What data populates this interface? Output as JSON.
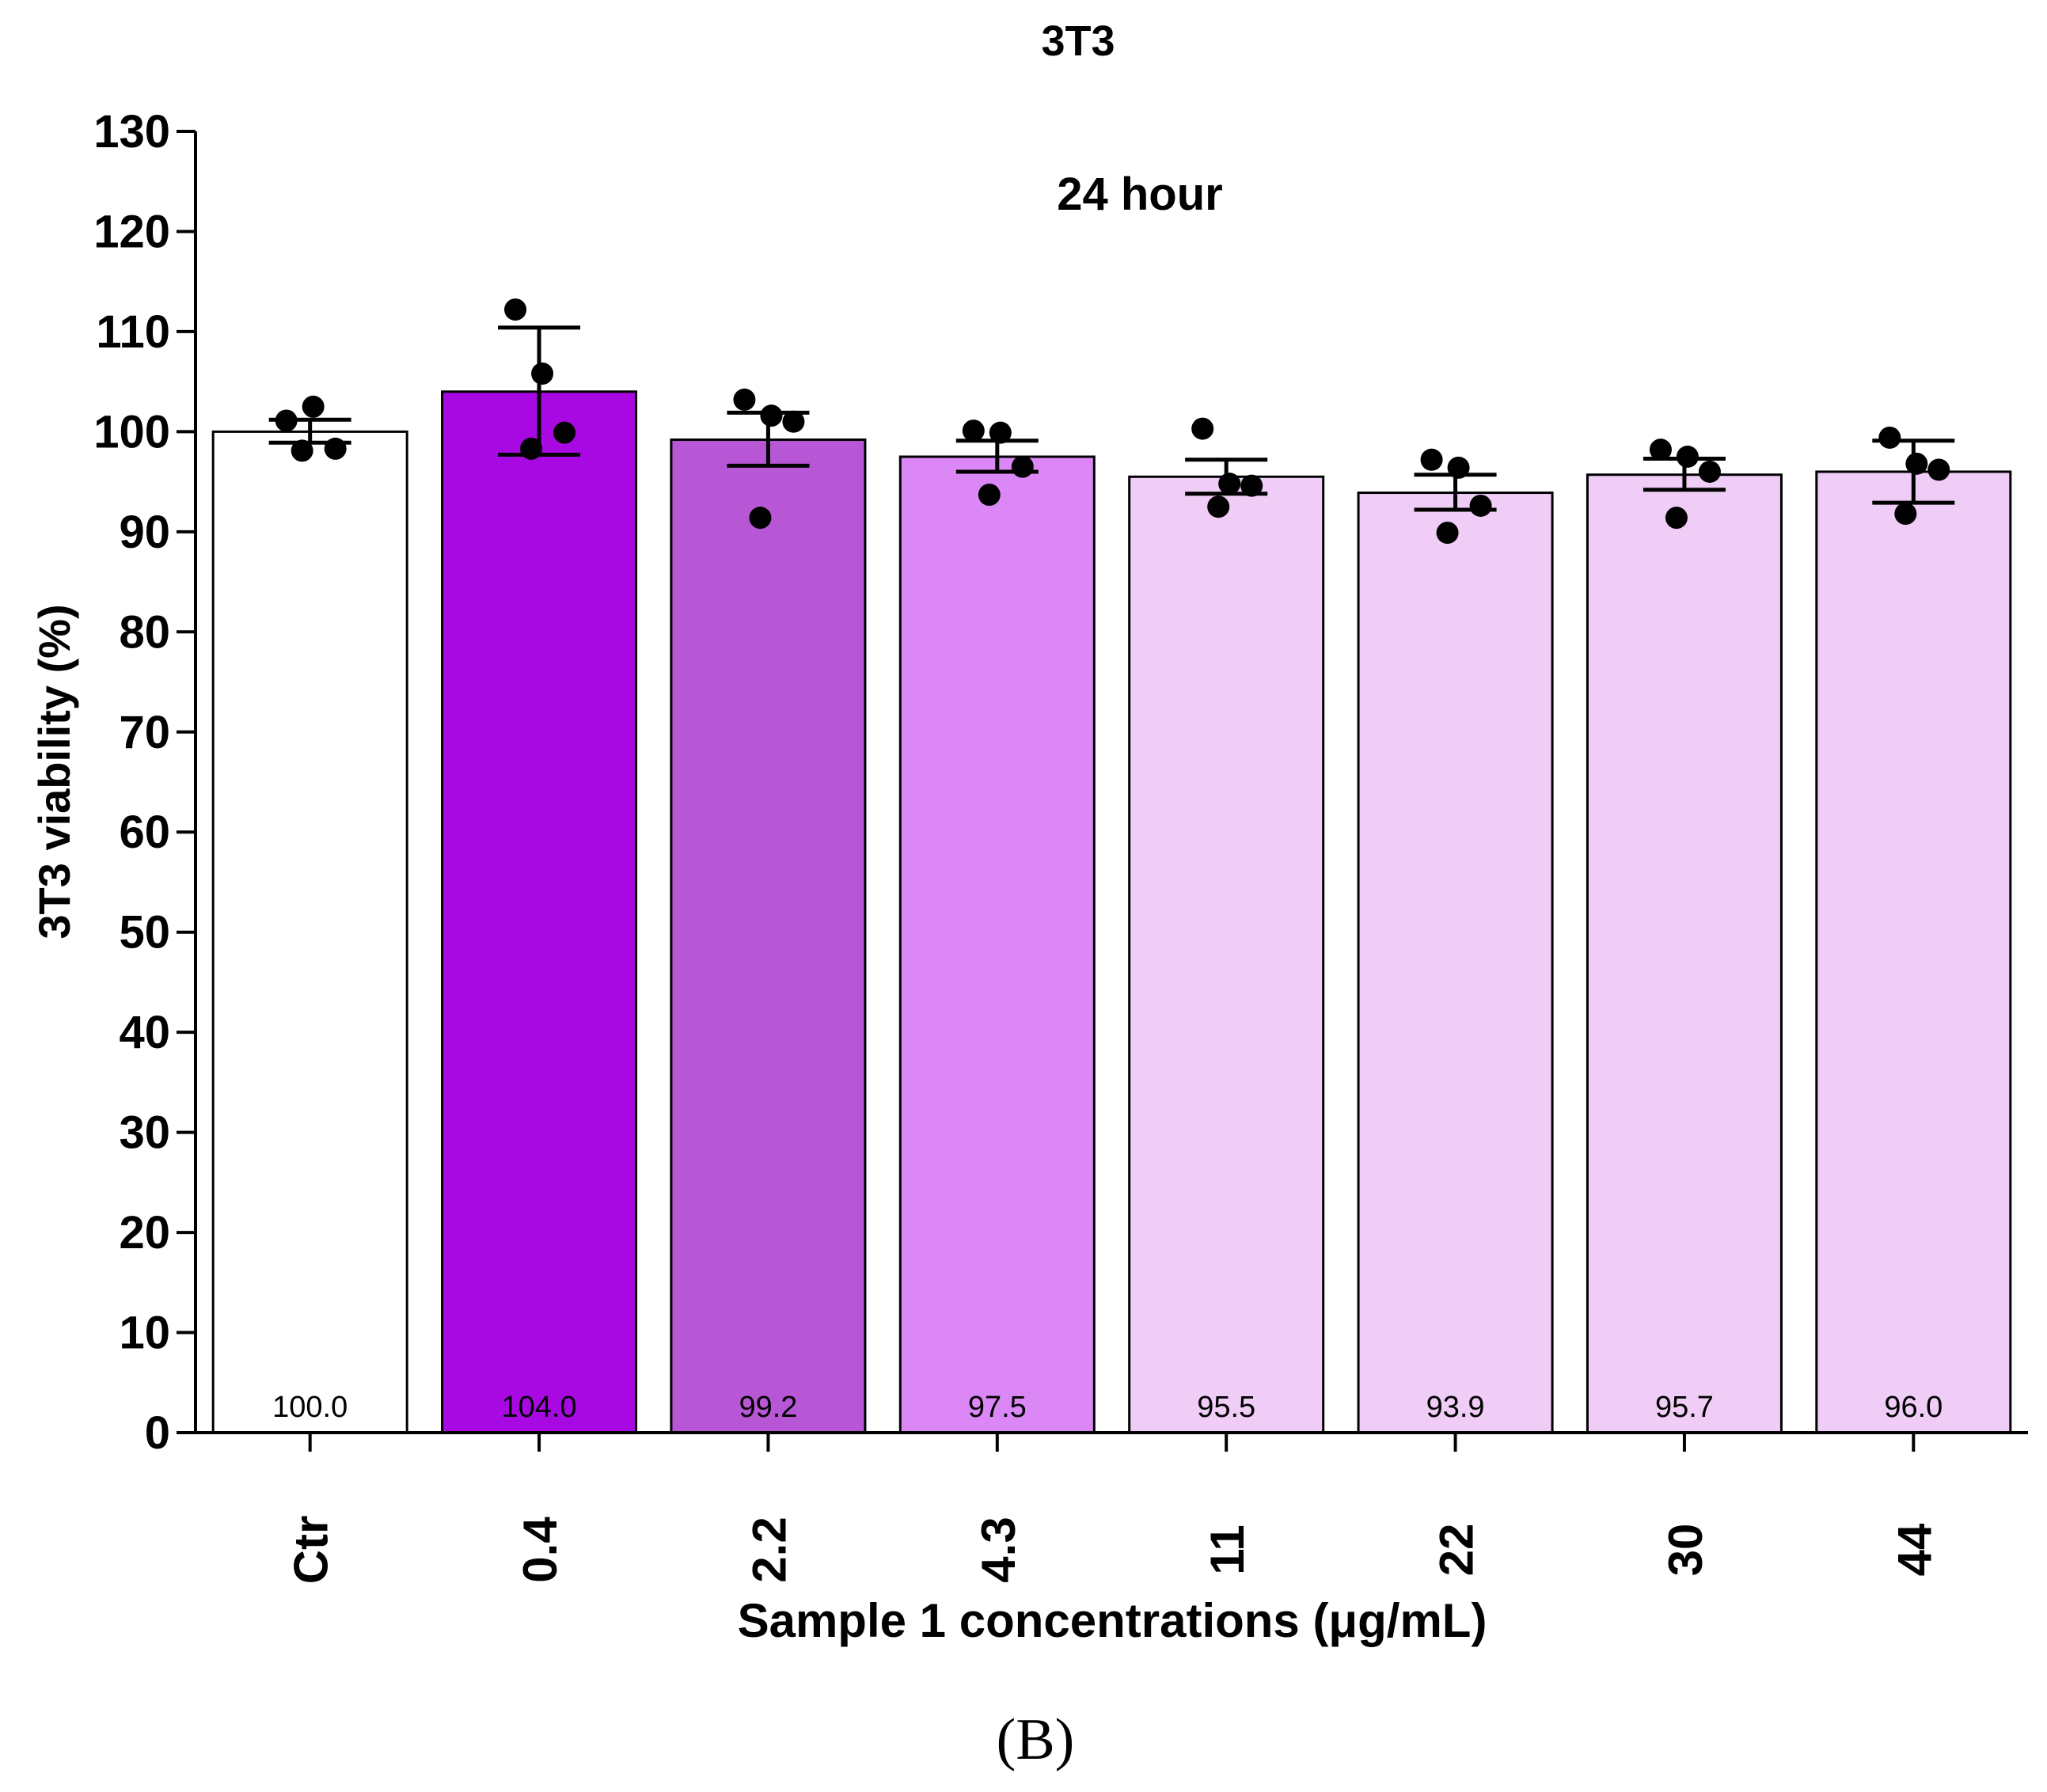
{
  "chart_data": {
    "type": "bar",
    "title": "3T3",
    "subtitle": "24 hour",
    "xlabel": "Sample 1 concentrations (μg/mL)",
    "ylabel": "3T3 viability (%)",
    "ylim": [
      0,
      130
    ],
    "yticks": [
      "0",
      "10",
      "20",
      "30",
      "40",
      "50",
      "60",
      "70",
      "80",
      "90",
      "100",
      "110",
      "120",
      "130"
    ],
    "categories": [
      "Ctr",
      "0.4",
      "2.2",
      "4.3",
      "11",
      "22",
      "30",
      "44"
    ],
    "values": [
      100.0,
      104.0,
      99.2,
      97.5,
      95.5,
      93.9,
      95.7,
      96.0
    ],
    "value_labels": [
      "100.0",
      "104.0",
      "99.2",
      "97.5",
      "95.5",
      "93.9",
      "95.7",
      "96.0"
    ],
    "error_bars": [
      {
        "low": 98.9,
        "high": 101.2
      },
      {
        "low": 97.7,
        "high": 110.4
      },
      {
        "low": 96.6,
        "high": 101.9
      },
      {
        "low": 96.0,
        "high": 99.1
      },
      {
        "low": 93.8,
        "high": 97.2
      },
      {
        "low": 92.2,
        "high": 95.7
      },
      {
        "low": 94.2,
        "high": 97.3
      },
      {
        "low": 92.9,
        "high": 99.1
      }
    ],
    "points": [
      [
        101.1,
        102.5,
        98.3,
        98.1
      ],
      [
        112.2,
        105.8,
        99.9,
        98.3
      ],
      [
        103.2,
        101.6,
        101.0,
        91.4
      ],
      [
        100.1,
        99.9,
        96.5,
        93.7
      ],
      [
        100.3,
        94.8,
        94.6,
        92.5
      ],
      [
        97.2,
        96.4,
        92.6,
        89.9
      ],
      [
        98.2,
        97.5,
        96.0,
        91.4
      ],
      [
        99.4,
        96.8,
        96.2,
        91.8
      ]
    ],
    "bar_colors": [
      "#ffffff",
      "#a809e3",
      "#b857d6",
      "#db87f6",
      "#efcdf6",
      "#efcdf6",
      "#efcdf6",
      "#efcdf6"
    ],
    "point_color": "#000000",
    "grid": false,
    "legend": "none"
  },
  "figure": {
    "panel_label": "(B)"
  }
}
